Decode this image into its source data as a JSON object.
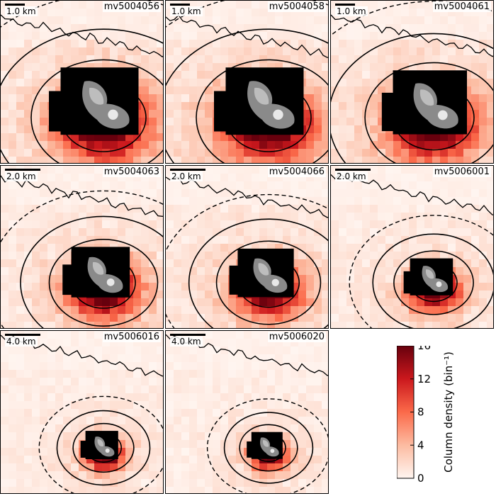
{
  "chart_data": {
    "type": "heatmap",
    "description_units": "Column density map panels with contour overlays and comet nucleus silhouette",
    "panels": [
      {
        "label": "mv5004056",
        "scale": "1.0 km",
        "spread": 1.0
      },
      {
        "label": "mv5004058",
        "scale": "1.0 km",
        "spread": 1.0
      },
      {
        "label": "mv5004061",
        "scale": "1.0 km",
        "spread": 0.95
      },
      {
        "label": "mv5004063",
        "scale": "2.0 km",
        "spread": 0.75
      },
      {
        "label": "mv5004066",
        "scale": "2.0 km",
        "spread": 0.72
      },
      {
        "label": "mv5006001",
        "scale": "2.0 km",
        "spread": 0.55
      },
      {
        "label": "mv5006016",
        "scale": "4.0 km",
        "spread": 0.42
      },
      {
        "label": "mv5006020",
        "scale": "4.0 km",
        "spread": 0.4
      }
    ],
    "colorbar": {
      "label": "Column density (bin⁻¹)",
      "ticks": [
        0,
        4,
        8,
        12,
        16
      ],
      "range": [
        0,
        16
      ],
      "colors": [
        "#fff5f0",
        "#fcbba1",
        "#fb6a4a",
        "#cb181d",
        "#67000d"
      ]
    }
  }
}
